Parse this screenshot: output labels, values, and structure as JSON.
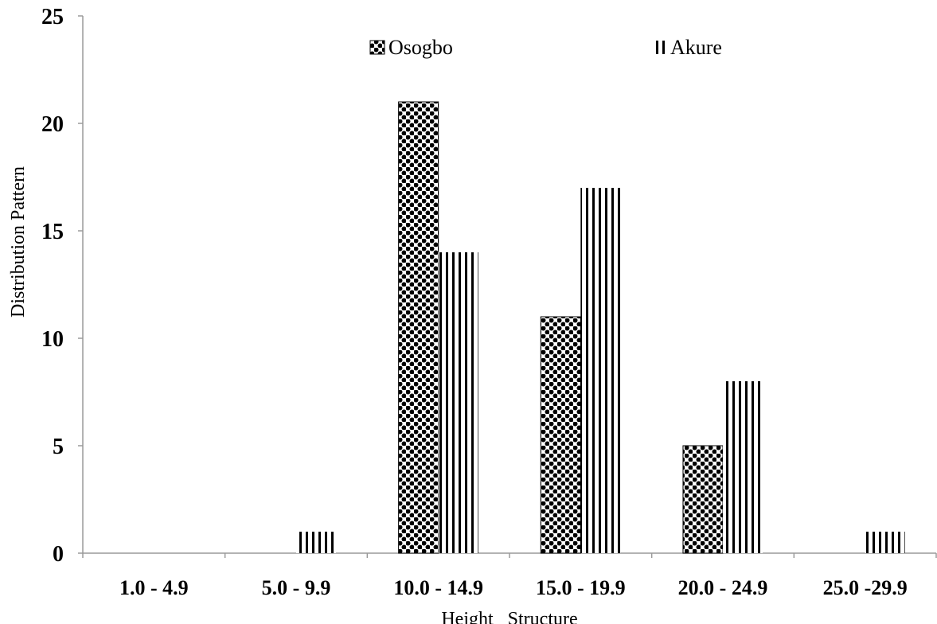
{
  "chart_data": {
    "type": "bar",
    "categories": [
      "1.0 - 4.9",
      "5.0 - 9.9",
      "10.0 - 14.9",
      "15.0 - 19.9",
      "20.0 - 24.9",
      "25.0 -29.9"
    ],
    "series": [
      {
        "name": "Osogbo",
        "values": [
          0,
          0,
          21,
          11,
          5,
          0
        ],
        "pattern": "checker"
      },
      {
        "name": "Akure",
        "values": [
          0,
          1,
          14,
          17,
          8,
          1
        ],
        "pattern": "vertical-lines"
      }
    ],
    "xlabel": "Height   Structure",
    "ylabel": "Distribution Pattern",
    "ylim": [
      0,
      25
    ],
    "yticks": [
      0,
      5,
      10,
      15,
      20,
      25
    ],
    "grid": false,
    "legend_position": "top-center"
  }
}
